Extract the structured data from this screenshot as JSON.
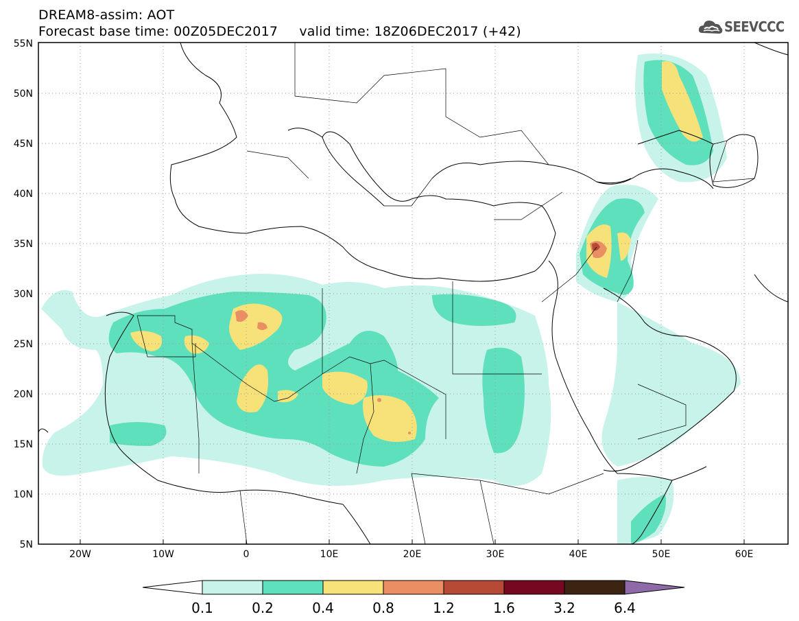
{
  "header": {
    "line1": "DREAM8-assim: AOT",
    "line2": "Forecast base time: 00Z05DEC2017     valid time: 18Z06DEC2017 (+42)"
  },
  "logo": {
    "text": "SEEVCCC",
    "icon": "cloud-icon"
  },
  "map": {
    "lat_range": [
      5,
      55
    ],
    "lon_range": [
      -25,
      65
    ],
    "lat_ticks": [
      "5N",
      "10N",
      "15N",
      "20N",
      "25N",
      "30N",
      "35N",
      "40N",
      "45N",
      "50N",
      "55N"
    ],
    "lon_ticks": [
      "20W",
      "10W",
      "0",
      "10E",
      "20E",
      "30E",
      "40E",
      "50E",
      "60E"
    ],
    "grid": "dotted"
  },
  "colorbar": {
    "labels": [
      "0.1",
      "0.2",
      "0.4",
      "0.8",
      "1.2",
      "1.6",
      "3.2",
      "6.4"
    ],
    "colors": [
      "#c8f3ea",
      "#5fe0bc",
      "#f7e27a",
      "#ea8f63",
      "#b64a35",
      "#760822",
      "#3b2411",
      "#8e6aa8"
    ]
  }
}
